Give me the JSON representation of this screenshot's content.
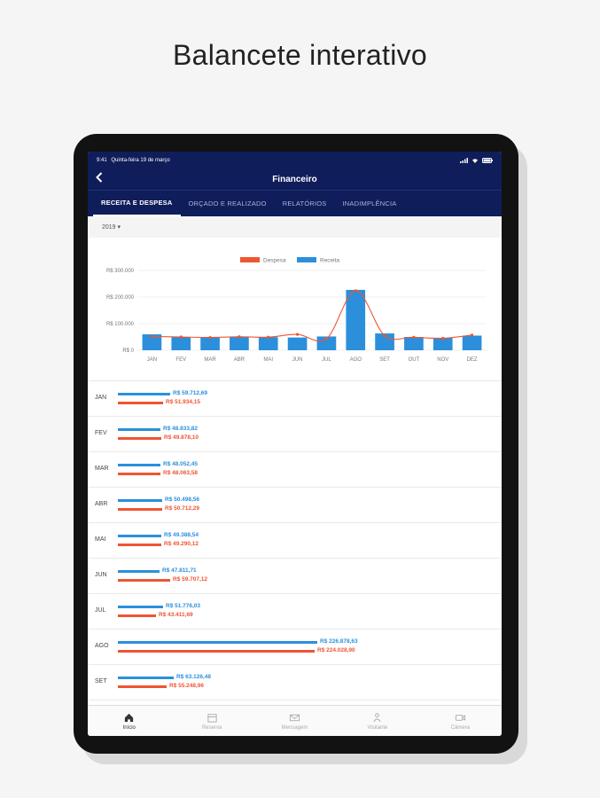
{
  "headline": "Balancete interativo",
  "status": {
    "time": "9:41",
    "date": "Quinta-feira 19 de março"
  },
  "nav": {
    "back_icon": "chevron-left-icon",
    "title": "Financeiro"
  },
  "tabs": [
    "RECEITA E DESPESA",
    "ORÇADO E REALIZADO",
    "RELATÓRIOS",
    "INADIMPLÊNCIA"
  ],
  "filter": {
    "year": "2019 ▾"
  },
  "chart_data": {
    "type": "bar",
    "categories": [
      "JAN",
      "FEV",
      "MAR",
      "ABR",
      "MAI",
      "JUN",
      "JUL",
      "AGO",
      "SET",
      "OUT",
      "NOV",
      "DEZ"
    ],
    "series": [
      {
        "name": "Receita",
        "kind": "bar",
        "color": "#2b8fdb",
        "values": [
          59713,
          48834,
          48052,
          50499,
          49389,
          47812,
          51776,
          226879,
          63126,
          50000,
          47000,
          55000
        ]
      },
      {
        "name": "Despesa",
        "kind": "line",
        "color": "#ee5533",
        "values": [
          51934,
          49879,
          48063,
          50712,
          49290,
          59707,
          43412,
          224029,
          55249,
          49000,
          45000,
          57000
        ]
      }
    ],
    "yticks": [
      "R$ 0",
      "R$ 100.000",
      "R$ 200.000",
      "R$ 300.000"
    ],
    "ylim": [
      0,
      300000
    ],
    "legend": [
      "Despesa",
      "Receita"
    ],
    "legend_position": "top"
  },
  "months": [
    {
      "label": "JAN",
      "rec_text": "R$ 59.712,69",
      "des_text": "R$ 51.934,15"
    },
    {
      "label": "FEV",
      "rec_text": "R$ 48.833,82",
      "des_text": "R$ 49.878,10"
    },
    {
      "label": "MAR",
      "rec_text": "R$ 48.052,45",
      "des_text": "R$ 48.063,58"
    },
    {
      "label": "ABR",
      "rec_text": "R$ 50.498,56",
      "des_text": "R$ 50.712,29"
    },
    {
      "label": "MAI",
      "rec_text": "R$ 49.388,54",
      "des_text": "R$ 49.290,12"
    },
    {
      "label": "JUN",
      "rec_text": "R$ 47.811,71",
      "des_text": "R$ 59.707,12"
    },
    {
      "label": "JUL",
      "rec_text": "R$ 51.776,03",
      "des_text": "R$ 43.411,69"
    },
    {
      "label": "AGO",
      "rec_text": "R$ 226.878,63",
      "des_text": "R$ 224.028,90"
    },
    {
      "label": "SET",
      "rec_text": "R$ 63.126,48",
      "des_text": "R$ 55.248,96"
    }
  ],
  "tabbar": [
    {
      "label": "Início",
      "icon": "home-icon"
    },
    {
      "label": "Reserva",
      "icon": "calendar-icon"
    },
    {
      "label": "Mensagem",
      "icon": "mail-icon"
    },
    {
      "label": "Visitante",
      "icon": "visitor-icon"
    },
    {
      "label": "Câmera",
      "icon": "camera-icon"
    }
  ]
}
